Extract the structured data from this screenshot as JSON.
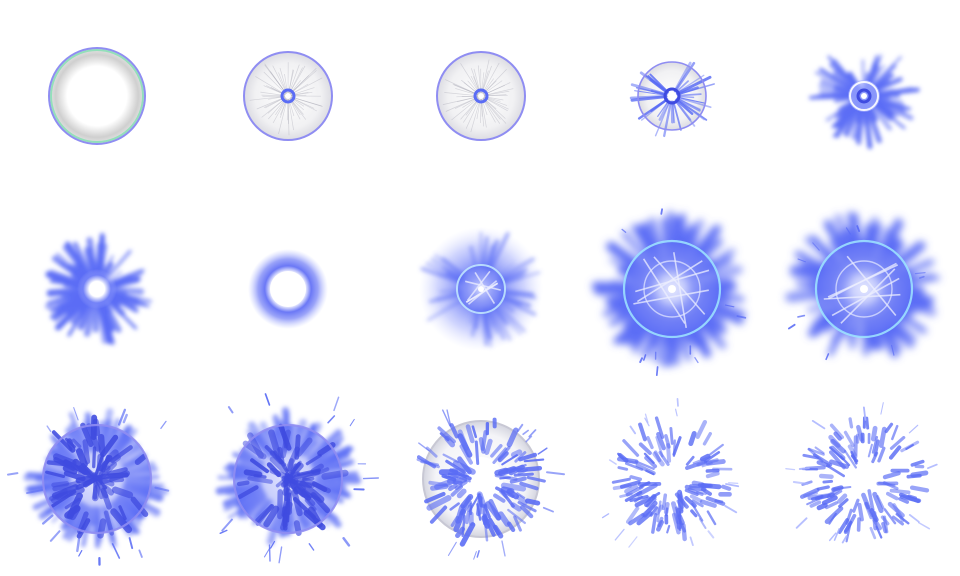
{
  "sprite_sheet": {
    "background": "#ffffff",
    "columns": 5,
    "rows": 3,
    "palette": {
      "glow": "#5a6cf5",
      "deep": "#3f4be0",
      "light": "#a9b3ff",
      "ring": "#8f8df2",
      "ring_accent": "#7fe0b0",
      "gray": "#c9c9c9",
      "white": "#ffffff"
    },
    "frames": [
      {
        "kind": "gray-ring",
        "name": "frame-01"
      },
      {
        "kind": "disc-small-core",
        "name": "frame-02"
      },
      {
        "kind": "disc-small-core",
        "name": "frame-03"
      },
      {
        "kind": "disc-spikes",
        "name": "frame-04"
      },
      {
        "kind": "burst-small",
        "name": "frame-05"
      },
      {
        "kind": "star-burst",
        "name": "frame-06"
      },
      {
        "kind": "soft-ring",
        "name": "frame-07"
      },
      {
        "kind": "glow-disc",
        "name": "frame-08"
      },
      {
        "kind": "big-burst",
        "name": "frame-09"
      },
      {
        "kind": "big-burst",
        "name": "frame-10"
      },
      {
        "kind": "shatter",
        "name": "frame-11"
      },
      {
        "kind": "shatter",
        "name": "frame-12"
      },
      {
        "kind": "dissipate",
        "name": "frame-13"
      },
      {
        "kind": "dissipate-thin",
        "name": "frame-14"
      },
      {
        "kind": "dissipate-thin",
        "name": "frame-15"
      }
    ]
  }
}
